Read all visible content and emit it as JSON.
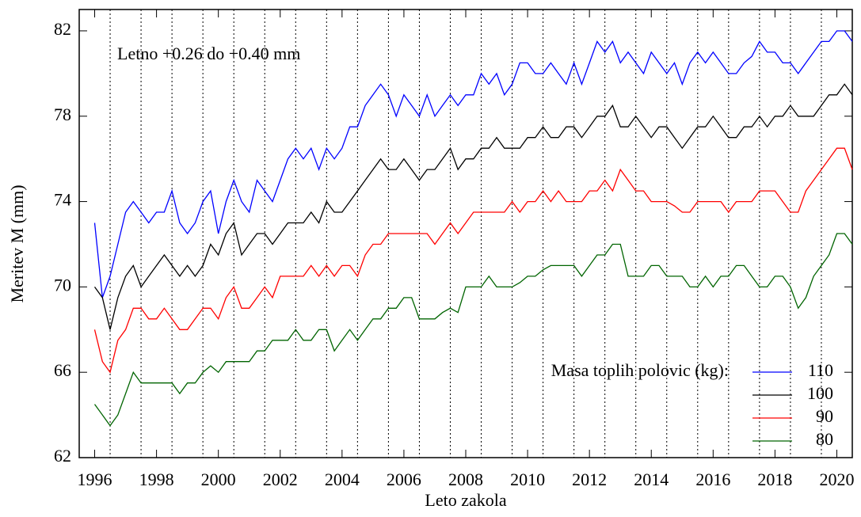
{
  "chart_data": {
    "type": "line",
    "title_annotation": "Letno +0.26 do +0.40 mm",
    "xlabel": "Leto zakola",
    "ylabel": "Meritev M (mm)",
    "legend_title": "Masa toplih polovic (kg):",
    "legend_position": "lower right",
    "xlim": [
      1995.5,
      2020.5
    ],
    "ylim": [
      62,
      83
    ],
    "xticks": [
      1996,
      1998,
      2000,
      2002,
      2004,
      2006,
      2008,
      2010,
      2012,
      2014,
      2016,
      2018,
      2020
    ],
    "yticks": [
      62,
      66,
      70,
      74,
      78,
      82
    ],
    "xgrid": [
      1996.5,
      1997.5,
      1998.5,
      1999.5,
      2000.5,
      2001.5,
      2002.5,
      2003.5,
      2004.5,
      2005.5,
      2006.5,
      2007.5,
      2008.5,
      2009.5,
      2010.5,
      2011.5,
      2012.5,
      2013.5,
      2014.5,
      2015.5,
      2016.5,
      2017.5,
      2018.5,
      2019.5
    ],
    "x": [
      1996,
      1996.25,
      1996.5,
      1996.75,
      1997,
      1997.25,
      1997.5,
      1997.75,
      1998,
      1998.25,
      1998.5,
      1998.75,
      1999,
      1999.25,
      1999.5,
      1999.75,
      2000,
      2000.25,
      2000.5,
      2000.75,
      2001,
      2001.25,
      2001.5,
      2001.75,
      2002,
      2002.25,
      2002.5,
      2002.75,
      2003,
      2003.25,
      2003.5,
      2003.75,
      2004,
      2004.25,
      2004.5,
      2004.75,
      2005,
      2005.25,
      2005.5,
      2005.75,
      2006,
      2006.25,
      2006.5,
      2006.75,
      2007,
      2007.25,
      2007.5,
      2007.75,
      2008,
      2008.25,
      2008.5,
      2008.75,
      2009,
      2009.25,
      2009.5,
      2009.75,
      2010,
      2010.25,
      2010.5,
      2010.75,
      2011,
      2011.25,
      2011.5,
      2011.75,
      2012,
      2012.25,
      2012.5,
      2012.75,
      2013,
      2013.25,
      2013.5,
      2013.75,
      2014,
      2014.25,
      2014.5,
      2014.75,
      2015,
      2015.25,
      2015.5,
      2015.75,
      2016,
      2016.25,
      2016.5,
      2016.75,
      2017,
      2017.25,
      2017.5,
      2017.75,
      2018,
      2018.25,
      2018.5,
      2018.75,
      2019,
      2019.25,
      2019.5,
      2019.75,
      2020,
      2020.25,
      2020.5
    ],
    "series": [
      {
        "name": "110",
        "color": "#0000ff",
        "values": [
          73,
          69.5,
          70.5,
          72,
          73.5,
          74,
          73.5,
          73,
          73.5,
          73.5,
          74.5,
          73,
          72.5,
          73,
          74,
          74.5,
          72.5,
          74,
          75,
          74,
          73.5,
          75,
          74.5,
          74,
          75,
          76,
          76.5,
          76,
          76.5,
          75.5,
          76.5,
          76,
          76.5,
          77.5,
          77.5,
          78.5,
          79,
          79.5,
          79,
          78,
          79,
          78.5,
          78,
          79,
          78,
          78.5,
          79,
          78.5,
          79,
          79,
          80,
          79.5,
          80,
          79,
          79.5,
          80.5,
          80.5,
          80,
          80,
          80.5,
          80,
          79.5,
          80.5,
          79.5,
          80.5,
          81.5,
          81,
          81.5,
          80.5,
          81,
          80.5,
          80,
          81,
          80.5,
          80,
          80.5,
          79.5,
          80.5,
          81,
          80.5,
          81,
          80.5,
          80,
          80,
          80.5,
          80.8,
          81.5,
          81,
          81,
          80.5,
          80.5,
          80,
          80.5,
          81,
          81.5,
          81.5,
          82,
          82,
          81.5
        ]
      },
      {
        "name": "100",
        "color": "#000000",
        "values": [
          70,
          69.5,
          68,
          69.5,
          70.5,
          71,
          70,
          70.5,
          71,
          71.5,
          71,
          70.5,
          71,
          70.5,
          71,
          72,
          71.5,
          72.5,
          73,
          71.5,
          72,
          72.5,
          72.5,
          72,
          72.5,
          73,
          73,
          73,
          73.5,
          73,
          74,
          73.5,
          73.5,
          74,
          74.5,
          75,
          75.5,
          76,
          75.5,
          75.5,
          76,
          75.5,
          75,
          75.5,
          75.5,
          76,
          76.5,
          75.5,
          76,
          76,
          76.5,
          76.5,
          77,
          76.5,
          76.5,
          76.5,
          77,
          77,
          77.5,
          77,
          77,
          77.5,
          77.5,
          77,
          77.5,
          78,
          78,
          78.5,
          77.5,
          77.5,
          78,
          77.5,
          77,
          77.5,
          77.5,
          77,
          76.5,
          77,
          77.5,
          77.5,
          78,
          77.5,
          77,
          77,
          77.5,
          77.5,
          78,
          77.5,
          78,
          78,
          78.5,
          78,
          78,
          78,
          78.5,
          79,
          79,
          79.5,
          79
        ]
      },
      {
        "name": "90",
        "color": "#ff0000",
        "values": [
          68,
          66.5,
          66,
          67.5,
          68,
          69,
          69,
          68.5,
          68.5,
          69,
          68.5,
          68,
          68,
          68.5,
          69,
          69,
          68.5,
          69.5,
          70,
          69,
          69,
          69.5,
          70,
          69.5,
          70.5,
          70.5,
          70.5,
          70.5,
          71,
          70.5,
          71,
          70.5,
          71,
          71,
          70.5,
          71.5,
          72,
          72,
          72.5,
          72.5,
          72.5,
          72.5,
          72.5,
          72.5,
          72,
          72.5,
          73,
          72.5,
          73,
          73.5,
          73.5,
          73.5,
          73.5,
          73.5,
          74,
          73.5,
          74,
          74,
          74.5,
          74,
          74.5,
          74,
          74,
          74,
          74.5,
          74.5,
          75,
          74.5,
          75.5,
          75,
          74.5,
          74.5,
          74,
          74,
          74,
          73.8,
          73.5,
          73.5,
          74,
          74,
          74,
          74,
          73.5,
          74,
          74,
          74,
          74.5,
          74.5,
          74.5,
          74,
          73.5,
          73.5,
          74.5,
          75,
          75.5,
          76,
          76.5,
          76.5,
          75.5
        ]
      },
      {
        "name": "80",
        "color": "#006400",
        "values": [
          64.5,
          64,
          63.5,
          64,
          65,
          66,
          65.5,
          65.5,
          65.5,
          65.5,
          65.5,
          65,
          65.5,
          65.5,
          66,
          66.3,
          66,
          66.5,
          66.5,
          66.5,
          66.5,
          67,
          67,
          67.5,
          67.5,
          67.5,
          68,
          67.5,
          67.5,
          68,
          68,
          67,
          67.5,
          68,
          67.5,
          68,
          68.5,
          68.5,
          69,
          69,
          69.5,
          69.5,
          68.5,
          68.5,
          68.5,
          68.8,
          69,
          68.8,
          70,
          70,
          70,
          70.5,
          70,
          70,
          70,
          70.2,
          70.5,
          70.5,
          70.8,
          71,
          71,
          71,
          71,
          70.5,
          71,
          71.5,
          71.5,
          72,
          72,
          70.5,
          70.5,
          70.5,
          71,
          71,
          70.5,
          70.5,
          70.5,
          70,
          70,
          70.5,
          70,
          70.5,
          70.5,
          71,
          71,
          70.5,
          70,
          70,
          70.5,
          70.5,
          70,
          69,
          69.5,
          70.5,
          71,
          71.5,
          72.5,
          72.5,
          72
        ]
      }
    ]
  }
}
